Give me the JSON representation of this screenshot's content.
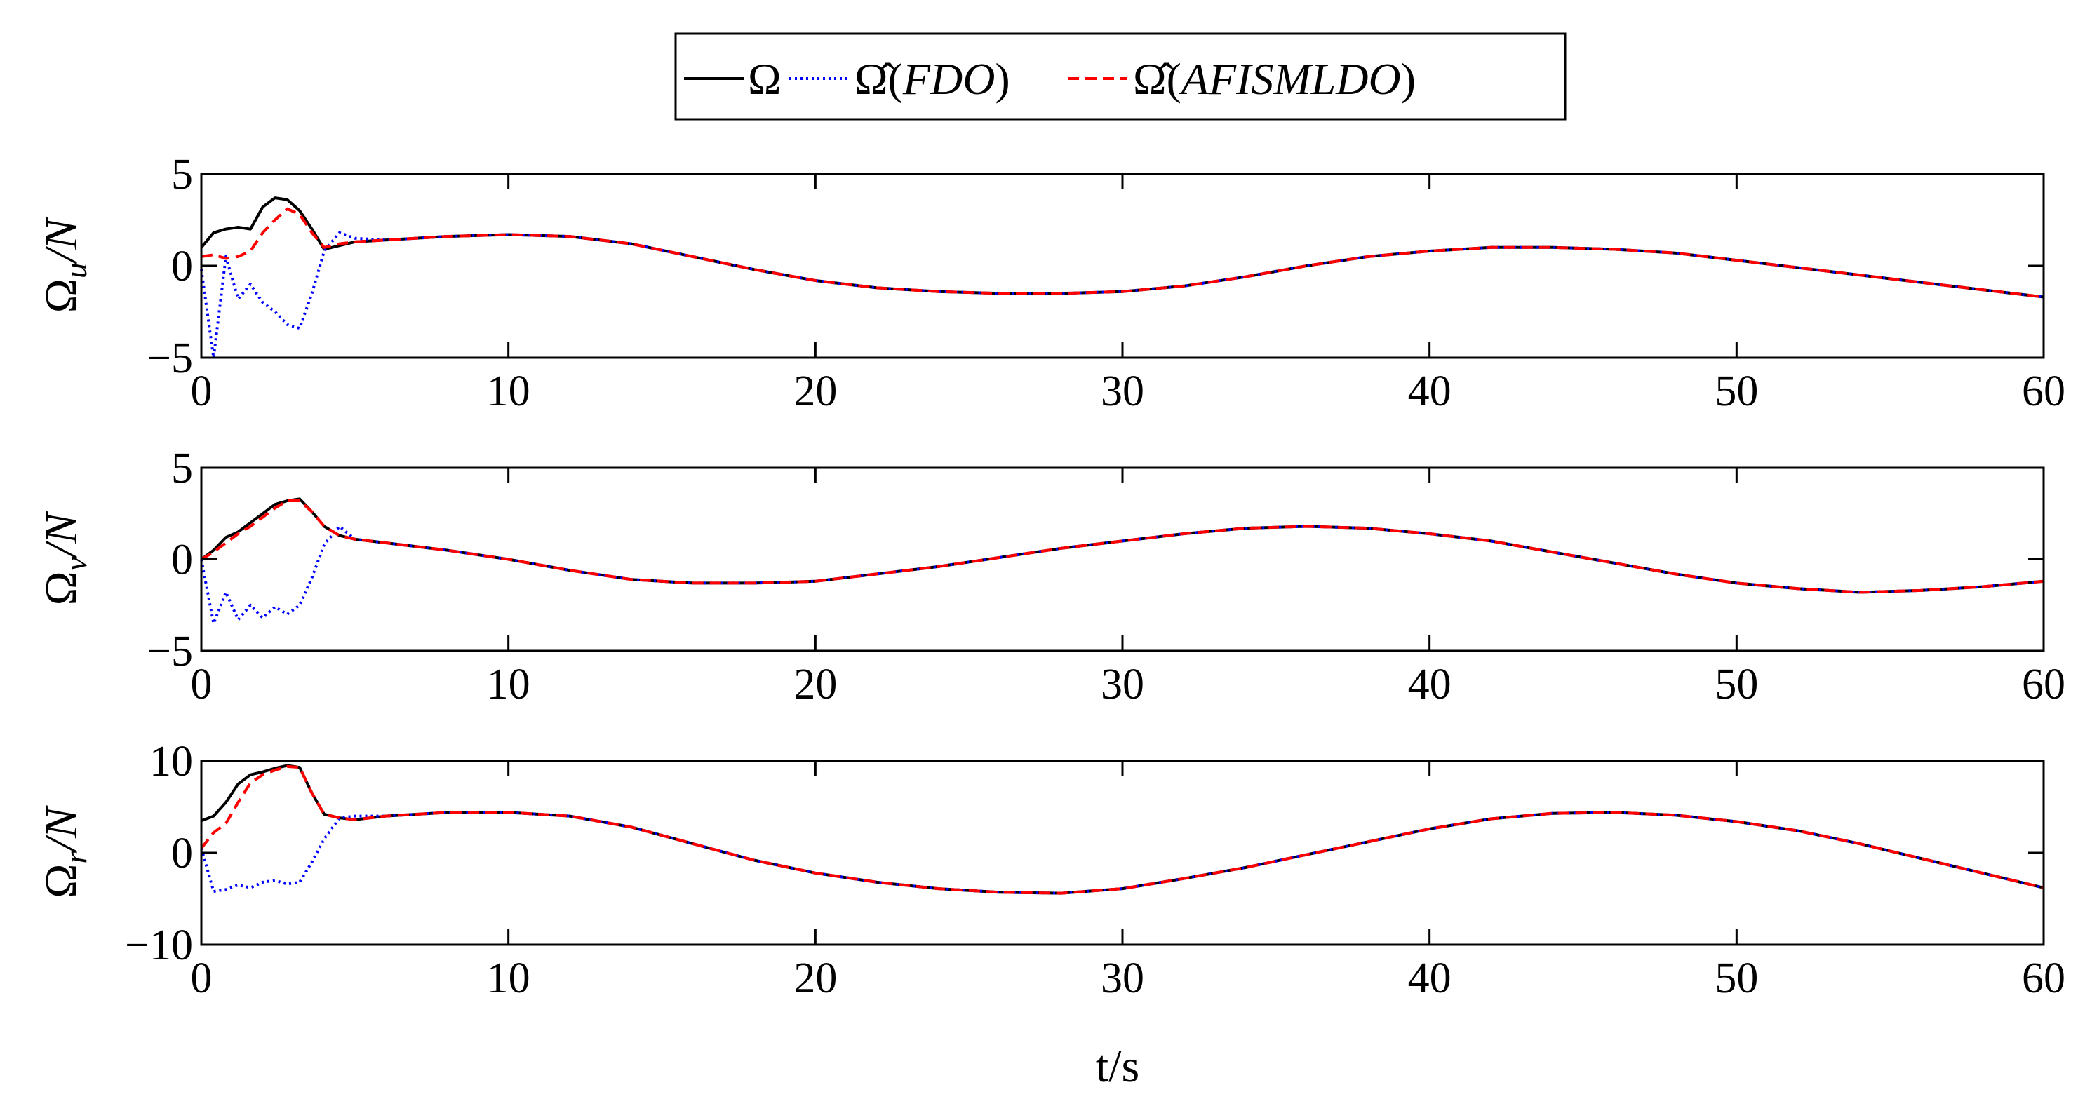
{
  "legend": {
    "entries": [
      {
        "label": "Ω",
        "color": "#000000",
        "style": "solid"
      },
      {
        "label_prefix": "Ω̂(",
        "label_italic": "FDO",
        "label_suffix": ")",
        "color": "#0000ff",
        "style": "dotted"
      },
      {
        "label_prefix": "Ω̂(",
        "label_italic": "AFISMLDO",
        "label_suffix": ")",
        "color": "#ff0000",
        "style": "dashed"
      }
    ]
  },
  "xlabel": "t/s",
  "chart_data": [
    {
      "type": "line",
      "ylabel": {
        "main": "Ω",
        "sub": "u",
        "unit": "/N"
      },
      "xlim": [
        0,
        60
      ],
      "ylim": [
        -5,
        5
      ],
      "xticks": [
        0,
        10,
        20,
        30,
        40,
        50,
        60
      ],
      "yticks": [
        -5,
        0,
        5
      ],
      "x": [
        0,
        0.4,
        0.8,
        1.2,
        1.6,
        2.0,
        2.4,
        2.8,
        3.2,
        3.6,
        4.0,
        4.5,
        5.0,
        6,
        8,
        10,
        12,
        14,
        16,
        18,
        20,
        22,
        24,
        26,
        28,
        30,
        32,
        34,
        36,
        38,
        40,
        42,
        44,
        46,
        48,
        50,
        52,
        54,
        56,
        58,
        60
      ],
      "series": [
        {
          "name": "Ω",
          "color": "#000000",
          "style": "solid",
          "values": [
            1.0,
            1.8,
            2.0,
            2.1,
            2.0,
            3.2,
            3.7,
            3.6,
            3.0,
            2.0,
            0.9,
            1.1,
            1.3,
            1.4,
            1.6,
            1.7,
            1.6,
            1.2,
            0.5,
            -0.2,
            -0.8,
            -1.2,
            -1.4,
            -1.5,
            -1.5,
            -1.4,
            -1.1,
            -0.6,
            0.0,
            0.5,
            0.8,
            1.0,
            1.0,
            0.9,
            0.7,
            0.3,
            -0.1,
            -0.5,
            -0.9,
            -1.3,
            -1.7
          ]
        },
        {
          "name": "Ω̂(FDO)",
          "color": "#0000ff",
          "style": "dotted",
          "values": [
            -0.2,
            -5.0,
            0.5,
            -1.8,
            -1.0,
            -2.0,
            -2.5,
            -3.2,
            -3.4,
            -1.5,
            0.8,
            1.8,
            1.5,
            1.4,
            1.6,
            1.7,
            1.6,
            1.2,
            0.5,
            -0.2,
            -0.8,
            -1.2,
            -1.4,
            -1.5,
            -1.5,
            -1.4,
            -1.1,
            -0.6,
            0.0,
            0.5,
            0.8,
            1.0,
            1.0,
            0.9,
            0.7,
            0.3,
            -0.1,
            -0.5,
            -0.9,
            -1.3,
            -1.7
          ]
        },
        {
          "name": "Ω̂(AFISMLDO)",
          "color": "#ff0000",
          "style": "dashed",
          "values": [
            0.5,
            0.6,
            0.4,
            0.5,
            0.8,
            1.8,
            2.5,
            3.1,
            2.8,
            1.8,
            1.0,
            1.2,
            1.3,
            1.4,
            1.6,
            1.7,
            1.6,
            1.2,
            0.5,
            -0.2,
            -0.8,
            -1.2,
            -1.4,
            -1.5,
            -1.5,
            -1.4,
            -1.1,
            -0.6,
            0.0,
            0.5,
            0.8,
            1.0,
            1.0,
            0.9,
            0.7,
            0.3,
            -0.1,
            -0.5,
            -0.9,
            -1.3,
            -1.7
          ]
        }
      ]
    },
    {
      "type": "line",
      "ylabel": {
        "main": "Ω",
        "sub": "v",
        "unit": "/N"
      },
      "xlim": [
        0,
        60
      ],
      "ylim": [
        -5,
        5
      ],
      "xticks": [
        0,
        10,
        20,
        30,
        40,
        50,
        60
      ],
      "yticks": [
        -5,
        0,
        5
      ],
      "x": [
        0,
        0.4,
        0.8,
        1.2,
        1.6,
        2.0,
        2.4,
        2.8,
        3.2,
        3.6,
        4.0,
        4.5,
        5.0,
        6,
        8,
        10,
        12,
        14,
        16,
        18,
        20,
        22,
        24,
        26,
        28,
        30,
        32,
        34,
        36,
        38,
        40,
        42,
        44,
        46,
        48,
        50,
        52,
        54,
        56,
        58,
        60
      ],
      "series": [
        {
          "name": "Ω",
          "color": "#000000",
          "style": "solid",
          "values": [
            0.0,
            0.5,
            1.2,
            1.5,
            2.0,
            2.5,
            3.0,
            3.2,
            3.3,
            2.6,
            1.8,
            1.3,
            1.1,
            0.9,
            0.5,
            0.0,
            -0.6,
            -1.1,
            -1.3,
            -1.3,
            -1.2,
            -0.8,
            -0.4,
            0.1,
            0.6,
            1.0,
            1.4,
            1.7,
            1.8,
            1.7,
            1.4,
            1.0,
            0.4,
            -0.2,
            -0.8,
            -1.3,
            -1.6,
            -1.8,
            -1.7,
            -1.5,
            -1.2
          ]
        },
        {
          "name": "Ω̂(FDO)",
          "color": "#0000ff",
          "style": "dotted",
          "values": [
            0.0,
            -3.5,
            -1.8,
            -3.3,
            -2.5,
            -3.2,
            -2.6,
            -3.0,
            -2.5,
            -1.0,
            0.8,
            1.8,
            1.1,
            0.9,
            0.5,
            0.0,
            -0.6,
            -1.1,
            -1.3,
            -1.3,
            -1.2,
            -0.8,
            -0.4,
            0.1,
            0.6,
            1.0,
            1.4,
            1.7,
            1.8,
            1.7,
            1.4,
            1.0,
            0.4,
            -0.2,
            -0.8,
            -1.3,
            -1.6,
            -1.8,
            -1.7,
            -1.5,
            -1.2
          ]
        },
        {
          "name": "Ω̂(AFISMLDO)",
          "color": "#ff0000",
          "style": "dashed",
          "values": [
            0.0,
            0.4,
            0.9,
            1.4,
            1.8,
            2.3,
            2.8,
            3.2,
            3.2,
            2.6,
            1.8,
            1.3,
            1.1,
            0.9,
            0.5,
            0.0,
            -0.6,
            -1.1,
            -1.3,
            -1.3,
            -1.2,
            -0.8,
            -0.4,
            0.1,
            0.6,
            1.0,
            1.4,
            1.7,
            1.8,
            1.7,
            1.4,
            1.0,
            0.4,
            -0.2,
            -0.8,
            -1.3,
            -1.6,
            -1.8,
            -1.7,
            -1.5,
            -1.2
          ]
        }
      ]
    },
    {
      "type": "line",
      "ylabel": {
        "main": "Ω",
        "sub": "r",
        "unit": "/N"
      },
      "xlim": [
        0,
        60
      ],
      "ylim": [
        -10,
        10
      ],
      "xticks": [
        0,
        10,
        20,
        30,
        40,
        50,
        60
      ],
      "yticks": [
        -10,
        0,
        10
      ],
      "x": [
        0,
        0.4,
        0.8,
        1.2,
        1.6,
        2.0,
        2.4,
        2.8,
        3.2,
        3.6,
        4.0,
        4.5,
        5.0,
        6,
        8,
        10,
        12,
        14,
        16,
        18,
        20,
        22,
        24,
        26,
        28,
        30,
        32,
        34,
        36,
        38,
        40,
        42,
        44,
        46,
        48,
        50,
        52,
        54,
        56,
        58,
        60
      ],
      "series": [
        {
          "name": "Ω",
          "color": "#000000",
          "style": "solid",
          "values": [
            3.5,
            4.0,
            5.5,
            7.5,
            8.5,
            8.8,
            9.2,
            9.5,
            9.3,
            6.5,
            4.2,
            3.8,
            3.6,
            4.0,
            4.4,
            4.4,
            4.0,
            2.8,
            1.0,
            -0.8,
            -2.2,
            -3.2,
            -3.9,
            -4.3,
            -4.4,
            -3.9,
            -2.8,
            -1.6,
            -0.2,
            1.2,
            2.6,
            3.7,
            4.3,
            4.4,
            4.1,
            3.4,
            2.4,
            1.0,
            -0.6,
            -2.2,
            -3.8
          ]
        },
        {
          "name": "Ω̂(FDO)",
          "color": "#0000ff",
          "style": "dotted",
          "values": [
            0.5,
            -4.2,
            -4.0,
            -3.5,
            -3.8,
            -3.2,
            -3.0,
            -3.4,
            -3.2,
            -1.0,
            1.5,
            3.8,
            4.0,
            4.0,
            4.4,
            4.4,
            4.0,
            2.8,
            1.0,
            -0.8,
            -2.2,
            -3.2,
            -3.9,
            -4.3,
            -4.4,
            -3.9,
            -2.8,
            -1.6,
            -0.2,
            1.2,
            2.6,
            3.7,
            4.3,
            4.4,
            4.1,
            3.4,
            2.4,
            1.0,
            -0.6,
            -2.2,
            -3.8
          ]
        },
        {
          "name": "Ω̂(AFISMLDO)",
          "color": "#ff0000",
          "style": "dashed",
          "values": [
            0.5,
            2.2,
            3.2,
            5.5,
            7.6,
            8.5,
            9.0,
            9.4,
            9.3,
            6.5,
            4.2,
            3.8,
            3.6,
            4.0,
            4.4,
            4.4,
            4.0,
            2.8,
            1.0,
            -0.8,
            -2.2,
            -3.2,
            -3.9,
            -4.3,
            -4.4,
            -3.9,
            -2.8,
            -1.6,
            -0.2,
            1.2,
            2.6,
            3.7,
            4.3,
            4.4,
            4.1,
            3.4,
            2.4,
            1.0,
            -0.6,
            -2.2,
            -3.8
          ]
        }
      ]
    }
  ]
}
